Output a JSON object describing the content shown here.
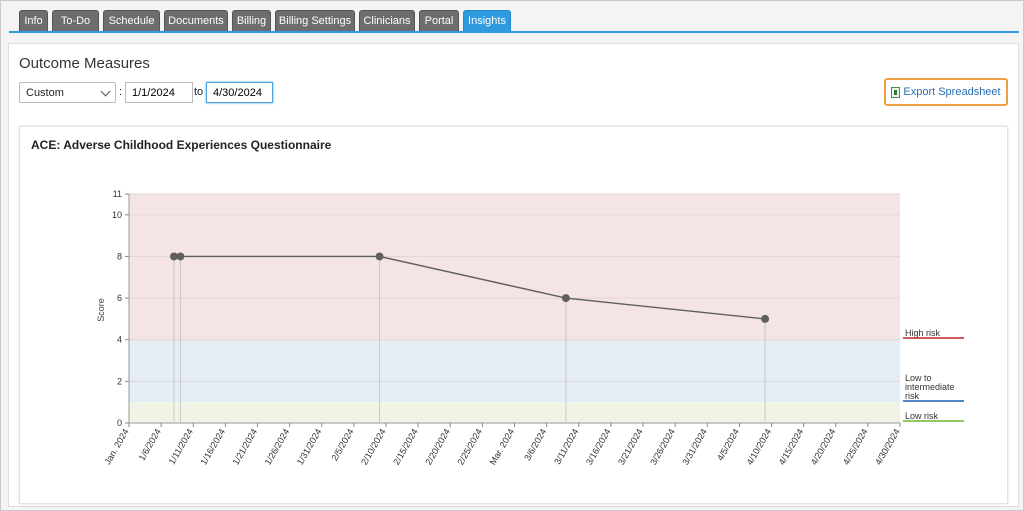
{
  "tabs": [
    {
      "label": "Info",
      "active": false
    },
    {
      "label": "To-Do",
      "active": false
    },
    {
      "label": "Schedule",
      "active": false
    },
    {
      "label": "Documents",
      "active": false
    },
    {
      "label": "Billing",
      "active": false
    },
    {
      "label": "Billing Settings",
      "active": false
    },
    {
      "label": "Clinicians",
      "active": false
    },
    {
      "label": "Portal",
      "active": false
    },
    {
      "label": "Insights",
      "active": true
    }
  ],
  "page_title": "Outcome Measures",
  "filters": {
    "range_value": "Custom",
    "colon": ":",
    "start_date": "1/1/2024",
    "to_label": "to",
    "end_date": "4/30/2024"
  },
  "export_label": "Export Spreadsheet",
  "colors": {
    "accent": "#2e9be0",
    "export_border": "#f0a044",
    "high_risk_band": "#f5e4e4",
    "mid_risk_band": "#e3edf3",
    "low_risk_band": "#f1f4e5",
    "high_risk_line": "#c0272d",
    "mid_risk_line": "#1c5fb0",
    "low_risk_line": "#6ab52c",
    "series": "#5f5f5f"
  },
  "chart_data": {
    "type": "line",
    "title": "ACE: Adverse Childhood Experiences Questionnaire",
    "ylabel": "Score",
    "xlabel": "",
    "ylim": [
      0,
      11
    ],
    "y_ticks": [
      0,
      2,
      4,
      6,
      8,
      10,
      11
    ],
    "x_range": [
      "2024-01-01",
      "2024-04-30"
    ],
    "x_tick_labels": [
      "Jan. 2024",
      "1/6/2024",
      "1/11/2024",
      "1/16/2024",
      "1/21/2024",
      "1/26/2024",
      "1/31/2024",
      "2/5/2024",
      "2/10/2024",
      "2/15/2024",
      "2/20/2024",
      "2/25/2024",
      "Mar. 2024",
      "3/6/2024",
      "3/11/2024",
      "3/16/2024",
      "3/21/2024",
      "3/26/2024",
      "3/31/2024",
      "4/5/2024",
      "4/10/2024",
      "4/15/2024",
      "4/20/2024",
      "4/25/2024",
      "4/30/2024"
    ],
    "x_tick_dates": [
      "2024-01-01",
      "2024-01-06",
      "2024-01-11",
      "2024-01-16",
      "2024-01-21",
      "2024-01-26",
      "2024-01-31",
      "2024-02-05",
      "2024-02-10",
      "2024-02-15",
      "2024-02-20",
      "2024-02-25",
      "2024-03-01",
      "2024-03-06",
      "2024-03-11",
      "2024-03-16",
      "2024-03-21",
      "2024-03-26",
      "2024-03-31",
      "2024-04-05",
      "2024-04-10",
      "2024-04-15",
      "2024-04-20",
      "2024-04-25",
      "2024-04-30"
    ],
    "points": [
      {
        "date": "2024-01-08",
        "value": 8
      },
      {
        "date": "2024-01-09",
        "value": 8
      },
      {
        "date": "2024-02-09",
        "value": 8
      },
      {
        "date": "2024-03-09",
        "value": 6
      },
      {
        "date": "2024-04-09",
        "value": 5
      }
    ],
    "bands": [
      {
        "label": "High risk",
        "from": 4,
        "to": 11
      },
      {
        "label": "Low to intermediate risk",
        "from": 1,
        "to": 4
      },
      {
        "label": "Low risk",
        "from": 0,
        "to": 1
      }
    ],
    "band_labels": {
      "high": "High risk",
      "mid_lines": [
        "Low to",
        "intermediate",
        "risk"
      ],
      "low": "Low risk"
    },
    "grid": true
  }
}
